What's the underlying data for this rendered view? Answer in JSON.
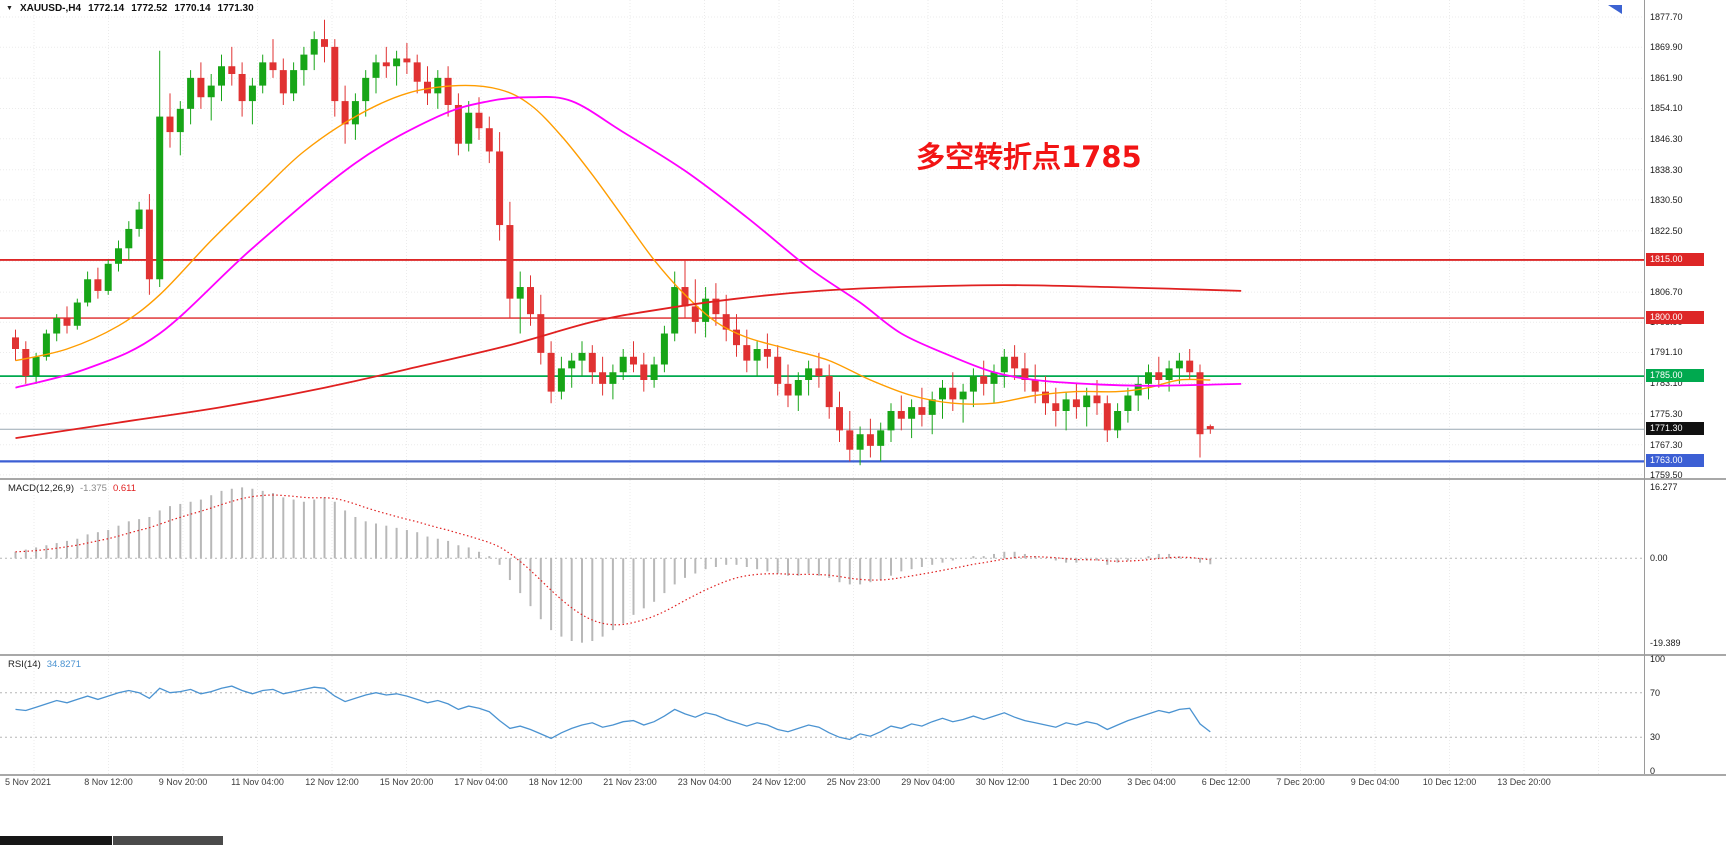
{
  "header": {
    "dropdown_icon": "▼",
    "symbol": "XAUUSD-,H4",
    "open": "1772.14",
    "high": "1772.52",
    "low": "1770.14",
    "close": "1771.30"
  },
  "annotation": {
    "text": "多空转折点1785",
    "color": "#f21414"
  },
  "colors": {
    "bull": "#17a517",
    "bear": "#e03232",
    "grid": "#ebebeb",
    "bid_line": "#9aa8b4",
    "macd_hist": "#b8b8b8",
    "macd_signal": "#e02020",
    "rsi_line": "#4b93d1"
  },
  "chart_data": {
    "type": "candlestick",
    "symbol": "XAUUSD",
    "timeframe": "H4",
    "title": "XAUUSD-,H4 1772.14 1772.52 1770.14 1771.30",
    "price_axis": {
      "min": 1758.7,
      "max": 1882.1,
      "labels": [
        "1877.70",
        "1869.90",
        "1861.90",
        "1854.10",
        "1846.30",
        "1838.30",
        "1830.50",
        "1822.50",
        "1814.70",
        "1806.70",
        "1798.90",
        "1791.10",
        "1783.10",
        "1775.30",
        "1767.30",
        "1759.50"
      ]
    },
    "time_axis": [
      "5 Nov 2021",
      "8 Nov 12:00",
      "9 Nov 20:00",
      "11 Nov 04:00",
      "12 Nov 12:00",
      "15 Nov 20:00",
      "17 Nov 04:00",
      "18 Nov 12:00",
      "21 Nov 23:00",
      "23 Nov 04:00",
      "24 Nov 12:00",
      "25 Nov 23:00",
      "29 Nov 04:00",
      "30 Nov 12:00",
      "1 Dec 20:00",
      "3 Dec 04:00",
      "6 Dec 12:00",
      "7 Dec 20:00",
      "9 Dec 04:00",
      "10 Dec 12:00",
      "13 Dec 20:00"
    ],
    "levels": [
      {
        "price": 1815,
        "label": "1815.00",
        "color": "#dd2626",
        "width": 1.8
      },
      {
        "price": 1800,
        "label": "1800.00",
        "color": "#dd2626",
        "width": 1.4
      },
      {
        "price": 1785,
        "label": "1785.00",
        "color": "#00a94f",
        "width": 1.8
      },
      {
        "price": 1763,
        "label": "1763.00",
        "color": "#3c5fd4",
        "width": 2.2
      }
    ],
    "bid": {
      "price": 1771.3,
      "label": "1771.30"
    },
    "candles": [
      [
        1795,
        1797,
        1789,
        1792
      ],
      [
        1792,
        1794,
        1783,
        1785
      ],
      [
        1785,
        1791,
        1783,
        1790
      ],
      [
        1790,
        1797,
        1789,
        1796
      ],
      [
        1796,
        1801,
        1794,
        1800
      ],
      [
        1800,
        1803,
        1796,
        1798
      ],
      [
        1798,
        1805,
        1797,
        1804
      ],
      [
        1804,
        1812,
        1803,
        1810
      ],
      [
        1810,
        1813,
        1805,
        1807
      ],
      [
        1807,
        1815,
        1806,
        1814
      ],
      [
        1814,
        1820,
        1812,
        1818
      ],
      [
        1818,
        1825,
        1815,
        1823
      ],
      [
        1823,
        1830,
        1821,
        1828
      ],
      [
        1828,
        1832,
        1806,
        1810
      ],
      [
        1810,
        1869,
        1808,
        1852
      ],
      [
        1852,
        1858,
        1844,
        1848
      ],
      [
        1848,
        1856,
        1842,
        1854
      ],
      [
        1854,
        1864,
        1850,
        1862
      ],
      [
        1862,
        1866,
        1854,
        1857
      ],
      [
        1857,
        1863,
        1851,
        1860
      ],
      [
        1860,
        1868,
        1856,
        1865
      ],
      [
        1865,
        1870,
        1860,
        1863
      ],
      [
        1863,
        1866,
        1852,
        1856
      ],
      [
        1856,
        1862,
        1850,
        1860
      ],
      [
        1860,
        1868,
        1858,
        1866
      ],
      [
        1866,
        1872,
        1862,
        1864
      ],
      [
        1864,
        1867,
        1855,
        1858
      ],
      [
        1858,
        1866,
        1856,
        1864
      ],
      [
        1864,
        1870,
        1860,
        1868
      ],
      [
        1868,
        1874,
        1864,
        1872
      ],
      [
        1872,
        1877,
        1866,
        1870
      ],
      [
        1870,
        1872,
        1852,
        1856
      ],
      [
        1856,
        1860,
        1845,
        1850
      ],
      [
        1850,
        1858,
        1846,
        1856
      ],
      [
        1856,
        1864,
        1852,
        1862
      ],
      [
        1862,
        1868,
        1858,
        1866
      ],
      [
        1866,
        1870,
        1862,
        1865
      ],
      [
        1865,
        1869,
        1860,
        1867
      ],
      [
        1867,
        1871,
        1863,
        1866
      ],
      [
        1866,
        1868,
        1858,
        1861
      ],
      [
        1861,
        1865,
        1855,
        1858
      ],
      [
        1858,
        1864,
        1854,
        1862
      ],
      [
        1862,
        1865,
        1852,
        1855
      ],
      [
        1855,
        1858,
        1842,
        1845
      ],
      [
        1845,
        1856,
        1843,
        1853
      ],
      [
        1853,
        1857,
        1846,
        1849
      ],
      [
        1849,
        1852,
        1840,
        1843
      ],
      [
        1843,
        1848,
        1820,
        1824
      ],
      [
        1824,
        1830,
        1800,
        1805
      ],
      [
        1805,
        1812,
        1796,
        1808
      ],
      [
        1808,
        1811,
        1798,
        1801
      ],
      [
        1801,
        1806,
        1788,
        1791
      ],
      [
        1791,
        1794,
        1778,
        1781
      ],
      [
        1781,
        1790,
        1779,
        1787
      ],
      [
        1787,
        1791,
        1782,
        1789
      ],
      [
        1789,
        1794,
        1785,
        1791
      ],
      [
        1791,
        1793,
        1783,
        1786
      ],
      [
        1786,
        1790,
        1780,
        1783
      ],
      [
        1783,
        1788,
        1779,
        1786
      ],
      [
        1786,
        1792,
        1784,
        1790
      ],
      [
        1790,
        1794,
        1786,
        1788
      ],
      [
        1788,
        1791,
        1781,
        1784
      ],
      [
        1784,
        1790,
        1782,
        1788
      ],
      [
        1788,
        1798,
        1786,
        1796
      ],
      [
        1796,
        1812,
        1794,
        1808
      ],
      [
        1808,
        1815,
        1800,
        1803
      ],
      [
        1803,
        1810,
        1796,
        1799
      ],
      [
        1799,
        1808,
        1795,
        1805
      ],
      [
        1805,
        1809,
        1798,
        1801
      ],
      [
        1801,
        1806,
        1794,
        1797
      ],
      [
        1797,
        1801,
        1790,
        1793
      ],
      [
        1793,
        1797,
        1786,
        1789
      ],
      [
        1789,
        1794,
        1785,
        1792
      ],
      [
        1792,
        1796,
        1787,
        1790
      ],
      [
        1790,
        1793,
        1780,
        1783
      ],
      [
        1783,
        1788,
        1777,
        1780
      ],
      [
        1780,
        1786,
        1776,
        1784
      ],
      [
        1784,
        1789,
        1780,
        1787
      ],
      [
        1787,
        1791,
        1782,
        1785
      ],
      [
        1785,
        1788,
        1774,
        1777
      ],
      [
        1777,
        1781,
        1768,
        1771
      ],
      [
        1771,
        1776,
        1763,
        1766
      ],
      [
        1766,
        1772,
        1762,
        1770
      ],
      [
        1770,
        1774,
        1764,
        1767
      ],
      [
        1767,
        1773,
        1763,
        1771
      ],
      [
        1771,
        1778,
        1768,
        1776
      ],
      [
        1776,
        1780,
        1771,
        1774
      ],
      [
        1774,
        1779,
        1769,
        1777
      ],
      [
        1777,
        1782,
        1772,
        1775
      ],
      [
        1775,
        1781,
        1770,
        1779
      ],
      [
        1779,
        1784,
        1774,
        1782
      ],
      [
        1782,
        1786,
        1776,
        1779
      ],
      [
        1779,
        1783,
        1773,
        1781
      ],
      [
        1781,
        1787,
        1777,
        1785
      ],
      [
        1785,
        1789,
        1780,
        1783
      ],
      [
        1783,
        1788,
        1778,
        1786
      ],
      [
        1786,
        1792,
        1782,
        1790
      ],
      [
        1790,
        1793,
        1784,
        1787
      ],
      [
        1787,
        1791,
        1781,
        1784
      ],
      [
        1784,
        1788,
        1778,
        1781
      ],
      [
        1781,
        1785,
        1775,
        1778
      ],
      [
        1778,
        1782,
        1772,
        1776
      ],
      [
        1776,
        1781,
        1771,
        1779
      ],
      [
        1779,
        1783,
        1774,
        1777
      ],
      [
        1777,
        1782,
        1772,
        1780
      ],
      [
        1780,
        1784,
        1775,
        1778
      ],
      [
        1778,
        1780,
        1768,
        1771
      ],
      [
        1771,
        1778,
        1769,
        1776
      ],
      [
        1776,
        1782,
        1773,
        1780
      ],
      [
        1780,
        1785,
        1776,
        1783
      ],
      [
        1783,
        1788,
        1779,
        1786
      ],
      [
        1786,
        1790,
        1782,
        1784
      ],
      [
        1784,
        1789,
        1781,
        1787
      ],
      [
        1787,
        1791,
        1783,
        1789
      ],
      [
        1789,
        1792,
        1784,
        1786
      ],
      [
        1786,
        1788,
        1764,
        1770
      ],
      [
        1772.1,
        1772.5,
        1770.1,
        1771.3
      ]
    ],
    "moving_averages": [
      {
        "name": "ma-fast",
        "color": "#ff9d00",
        "width": 1.4,
        "points": [
          [
            0,
            1789
          ],
          [
            5,
            1792
          ],
          [
            10,
            1798
          ],
          [
            14,
            1806
          ],
          [
            19,
            1820
          ],
          [
            24,
            1833
          ],
          [
            28,
            1843
          ],
          [
            33,
            1852
          ],
          [
            38,
            1858
          ],
          [
            43,
            1860
          ],
          [
            47,
            1859
          ],
          [
            50,
            1855
          ],
          [
            53,
            1847
          ],
          [
            56,
            1837
          ],
          [
            59,
            1826
          ],
          [
            62,
            1815
          ],
          [
            65,
            1806
          ],
          [
            68,
            1799
          ],
          [
            71,
            1795
          ],
          [
            75,
            1792
          ],
          [
            79,
            1789
          ],
          [
            83,
            1784
          ],
          [
            87,
            1780
          ],
          [
            91,
            1778
          ],
          [
            95,
            1778
          ],
          [
            99,
            1780
          ],
          [
            103,
            1781
          ],
          [
            107,
            1781
          ],
          [
            110,
            1782
          ],
          [
            113,
            1784
          ],
          [
            116,
            1784
          ]
        ]
      },
      {
        "name": "ma-mid",
        "color": "#ff00ff",
        "width": 1.8,
        "points": [
          [
            0,
            1782
          ],
          [
            7,
            1787
          ],
          [
            14,
            1796
          ],
          [
            23,
            1818
          ],
          [
            33,
            1840
          ],
          [
            41,
            1852
          ],
          [
            46,
            1856
          ],
          [
            50,
            1857
          ],
          [
            54,
            1856
          ],
          [
            59,
            1848
          ],
          [
            65,
            1838
          ],
          [
            71,
            1826
          ],
          [
            77,
            1813
          ],
          [
            82,
            1804
          ],
          [
            86,
            1796
          ],
          [
            91,
            1790
          ],
          [
            95,
            1786
          ],
          [
            99,
            1784
          ],
          [
            104,
            1783
          ],
          [
            110,
            1782.5
          ],
          [
            119,
            1783
          ]
        ]
      },
      {
        "name": "ma-slow",
        "color": "#e02020",
        "width": 1.8,
        "points": [
          [
            0,
            1769
          ],
          [
            10,
            1773
          ],
          [
            20,
            1777
          ],
          [
            30,
            1782
          ],
          [
            40,
            1788
          ],
          [
            48,
            1793
          ],
          [
            56,
            1799
          ],
          [
            62,
            1802
          ],
          [
            70,
            1805
          ],
          [
            78,
            1807
          ],
          [
            86,
            1808
          ],
          [
            96,
            1808.5
          ],
          [
            106,
            1808
          ],
          [
            113,
            1807.5
          ],
          [
            119,
            1807
          ]
        ]
      }
    ],
    "indicators": {
      "macd": {
        "label": "MACD(12,26,9)",
        "value": "-1.375",
        "signal_value": "0.611",
        "axis_labels": [
          "16.277",
          "0.00",
          "-19.389"
        ],
        "vmax": 18,
        "vmin": -22,
        "histogram": [
          1.5,
          2.0,
          2.5,
          3.0,
          3.5,
          4.0,
          4.5,
          5.5,
          6.0,
          6.5,
          7.5,
          8.5,
          9.0,
          9.5,
          11.0,
          12.0,
          12.5,
          13.0,
          13.5,
          14.5,
          15.5,
          16.0,
          16.3,
          16.0,
          15.5,
          15.0,
          14.0,
          13.5,
          13.0,
          13.5,
          14.0,
          13.0,
          11.0,
          9.5,
          8.5,
          8.0,
          7.5,
          7.0,
          6.5,
          6.0,
          5.0,
          4.5,
          4.0,
          3.0,
          2.5,
          1.5,
          0.5,
          -1.5,
          -5.0,
          -8.0,
          -11.0,
          -14.0,
          -16.5,
          -18.0,
          -19.0,
          -19.4,
          -19.0,
          -18.0,
          -16.5,
          -15.0,
          -13.0,
          -11.5,
          -10.0,
          -8.0,
          -6.0,
          -4.5,
          -3.5,
          -2.5,
          -2.0,
          -1.5,
          -1.5,
          -2.0,
          -2.5,
          -3.0,
          -3.5,
          -4.0,
          -4.0,
          -3.5,
          -4.0,
          -4.5,
          -5.5,
          -6.0,
          -6.0,
          -5.5,
          -5.0,
          -4.0,
          -3.0,
          -2.5,
          -2.0,
          -1.5,
          -1.0,
          -0.5,
          0.0,
          0.5,
          0.5,
          1.0,
          1.5,
          1.5,
          1.0,
          0.5,
          0.0,
          -0.5,
          -1.0,
          -1.0,
          -0.5,
          -0.5,
          -1.5,
          -1.0,
          -0.5,
          0.0,
          0.5,
          1.0,
          1.0,
          0.5,
          0.0,
          -1.0,
          -1.375
        ]
      },
      "rsi": {
        "label": "RSI(14)",
        "value": "34.8271",
        "axis_labels": [
          "100",
          "70",
          "30",
          "0"
        ],
        "overbought": 70,
        "oversold": 30,
        "values": [
          55,
          54,
          57,
          60,
          63,
          61,
          64,
          67,
          64,
          67,
          70,
          72,
          70,
          65,
          74,
          70,
          71,
          73,
          69,
          71,
          74,
          76,
          72,
          69,
          72,
          73,
          69,
          71,
          73,
          75,
          74,
          67,
          62,
          65,
          68,
          70,
          68,
          69,
          67,
          64,
          61,
          63,
          60,
          55,
          58,
          56,
          53,
          45,
          38,
          40,
          37,
          33,
          29,
          34,
          38,
          41,
          43,
          39,
          41,
          44,
          45,
          41,
          44,
          49,
          55,
          51,
          48,
          52,
          50,
          46,
          43,
          40,
          43,
          41,
          37,
          35,
          38,
          41,
          39,
          34,
          30,
          28,
          33,
          31,
          35,
          40,
          38,
          42,
          40,
          44,
          47,
          44,
          46,
          49,
          46,
          49,
          52,
          48,
          45,
          43,
          41,
          39,
          43,
          41,
          44,
          42,
          37,
          41,
          45,
          48,
          51,
          54,
          52,
          55,
          56,
          42,
          34.83
        ]
      }
    }
  }
}
